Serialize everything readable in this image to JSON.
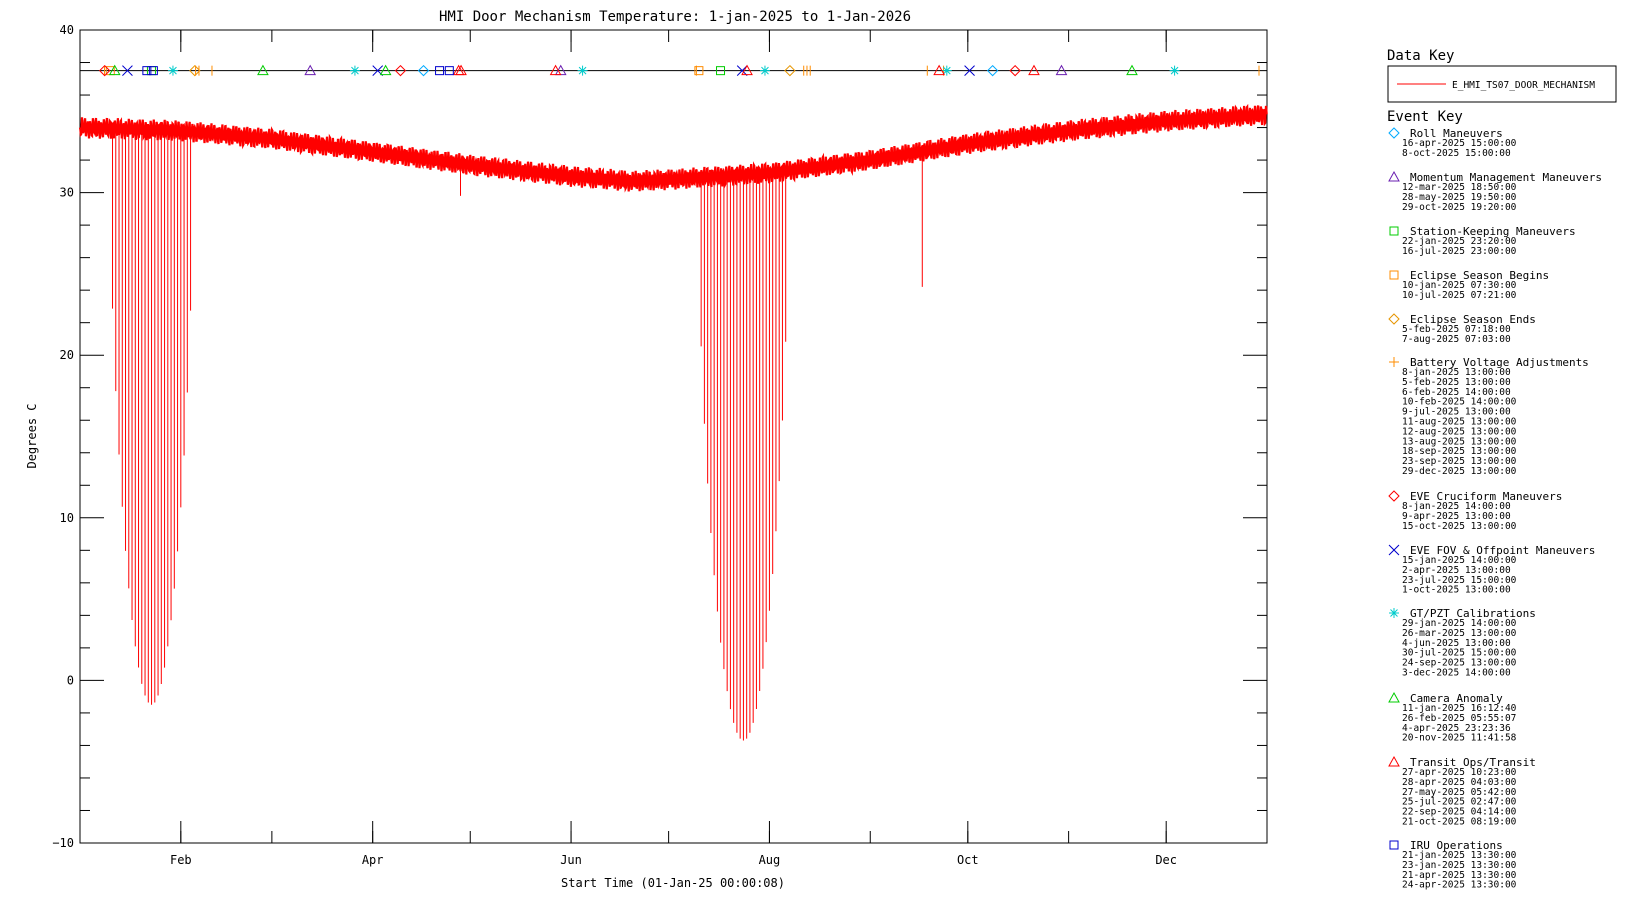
{
  "chart_data": {
    "type": "line",
    "title": "HMI Door Mechanism Temperature: 1-jan-2025 to 1-Jan-2026",
    "xlabel": "Start Time (01-Jan-25 00:00:08)",
    "ylabel": "Degrees C",
    "xlim_days": [
      0,
      365
    ],
    "ylim": [
      -10,
      40
    ],
    "x_ticks": [
      {
        "label": "Feb",
        "day": 31
      },
      {
        "label": "Apr",
        "day": 90
      },
      {
        "label": "Jun",
        "day": 151
      },
      {
        "label": "Aug",
        "day": 212
      },
      {
        "label": "Oct",
        "day": 273
      },
      {
        "label": "Dec",
        "day": 334
      }
    ],
    "y_ticks": [
      {
        "label": "40",
        "value": 40
      },
      {
        "label": "30",
        "value": 30
      },
      {
        "label": "20",
        "value": 20
      },
      {
        "label": "10",
        "value": 10
      },
      {
        "label": "0",
        "value": 0
      },
      {
        "label": "−10",
        "value": -10
      }
    ],
    "baseline": {
      "x": [
        "2025-01-01",
        "2025-02-01",
        "2025-03-01",
        "2025-04-01",
        "2025-05-01",
        "2025-06-01",
        "2025-06-20",
        "2025-07-01",
        "2025-08-01",
        "2025-09-01",
        "2025-10-01",
        "2025-11-01",
        "2025-12-01",
        "2026-01-01"
      ],
      "y": [
        34.0,
        33.8,
        33.3,
        32.5,
        31.7,
        31.0,
        30.7,
        30.8,
        31.2,
        32.0,
        33.0,
        33.8,
        34.4,
        34.8
      ]
    },
    "eclipse_seasons": [
      {
        "start": "2025-01-10",
        "end": "2025-02-05",
        "min": -1.5
      },
      {
        "start": "2025-07-10",
        "end": "2025-08-07",
        "min": -3.7
      }
    ],
    "spikes": [
      {
        "x": "2025-04-28",
        "y": 29.8
      },
      {
        "x": "2025-09-17",
        "y": 24.2
      }
    ],
    "event_marker_level": 37.5,
    "series": [
      {
        "name": "E_HMI_TS07_DOOR_MECHANISM",
        "color": "#ff0000"
      }
    ]
  },
  "key": {
    "data_key_title": "Data Key",
    "data_series_name": "E_HMI_TS07_DOOR_MECHANISM",
    "event_key_title": "Event Key",
    "events": [
      {
        "name": "Roll Maneuvers",
        "symbol": "diamond",
        "color": "#00aaff",
        "dates": [
          "16-apr-2025 15:00:00",
          "8-oct-2025 15:00:00"
        ]
      },
      {
        "name": "Momentum Management Maneuvers",
        "symbol": "triangle",
        "color": "#6a1fb0",
        "dates": [
          "12-mar-2025 18:50:00",
          "28-may-2025 19:50:00",
          "29-oct-2025 19:20:00"
        ]
      },
      {
        "name": "Station-Keeping Maneuvers",
        "symbol": "square",
        "color": "#00cc00",
        "dates": [
          "22-jan-2025 23:20:00",
          "16-jul-2025 23:00:00"
        ]
      },
      {
        "name": "Eclipse Season Begins",
        "symbol": "square",
        "color": "#ff8c00",
        "dates": [
          "10-jan-2025 07:30:00",
          "10-jul-2025 07:21:00"
        ]
      },
      {
        "name": "Eclipse Season Ends",
        "symbol": "diamond",
        "color": "#e69500",
        "dates": [
          "5-feb-2025 07:18:00",
          "7-aug-2025 07:03:00"
        ]
      },
      {
        "name": "Battery Voltage Adjustments",
        "symbol": "plus",
        "color": "#ff8c00",
        "dates": [
          "8-jan-2025 13:00:00",
          "5-feb-2025 13:00:00",
          "6-feb-2025 14:00:00",
          "10-feb-2025 14:00:00",
          "9-jul-2025 13:00:00",
          "11-aug-2025 13:00:00",
          "12-aug-2025 13:00:00",
          "13-aug-2025 13:00:00",
          "18-sep-2025 13:00:00",
          "23-sep-2025 13:00:00",
          "29-dec-2025 13:00:00"
        ]
      },
      {
        "name": "EVE Cruciform Maneuvers",
        "symbol": "diamond",
        "color": "#ff0000",
        "dates": [
          "8-jan-2025 14:00:00",
          "9-apr-2025 13:00:00",
          "15-oct-2025 13:00:00"
        ]
      },
      {
        "name": "EVE FOV & Offpoint Maneuvers",
        "symbol": "x",
        "color": "#0000cc",
        "dates": [
          "15-jan-2025 14:00:00",
          "2-apr-2025 13:00:00",
          "23-jul-2025 15:00:00",
          "1-oct-2025 13:00:00"
        ]
      },
      {
        "name": "GT/PZT Calibrations",
        "symbol": "asterisk",
        "color": "#00cccc",
        "dates": [
          "29-jan-2025 14:00:00",
          "26-mar-2025 13:00:00",
          "4-jun-2025 13:00:00",
          "30-jul-2025 15:00:00",
          "24-sep-2025 13:00:00",
          "3-dec-2025 14:00:00"
        ]
      },
      {
        "name": "Camera Anomaly",
        "symbol": "triangle",
        "color": "#00cc00",
        "dates": [
          "11-jan-2025 16:12:40",
          "26-feb-2025 05:55:07",
          "4-apr-2025 23:23:36",
          "20-nov-2025 11:41:58"
        ]
      },
      {
        "name": "Transit Ops/Transit",
        "symbol": "triangle",
        "color": "#ff0000",
        "dates": [
          "27-apr-2025 10:23:00",
          "28-apr-2025 04:03:00",
          "27-may-2025 05:42:00",
          "25-jul-2025 02:47:00",
          "22-sep-2025 04:14:00",
          "21-oct-2025 08:19:00"
        ]
      },
      {
        "name": "IRU Operations",
        "symbol": "square",
        "color": "#0000cc",
        "dates": [
          "21-jan-2025 13:30:00",
          "23-jan-2025 13:30:00",
          "21-apr-2025 13:30:00",
          "24-apr-2025 13:30:00"
        ]
      }
    ]
  }
}
